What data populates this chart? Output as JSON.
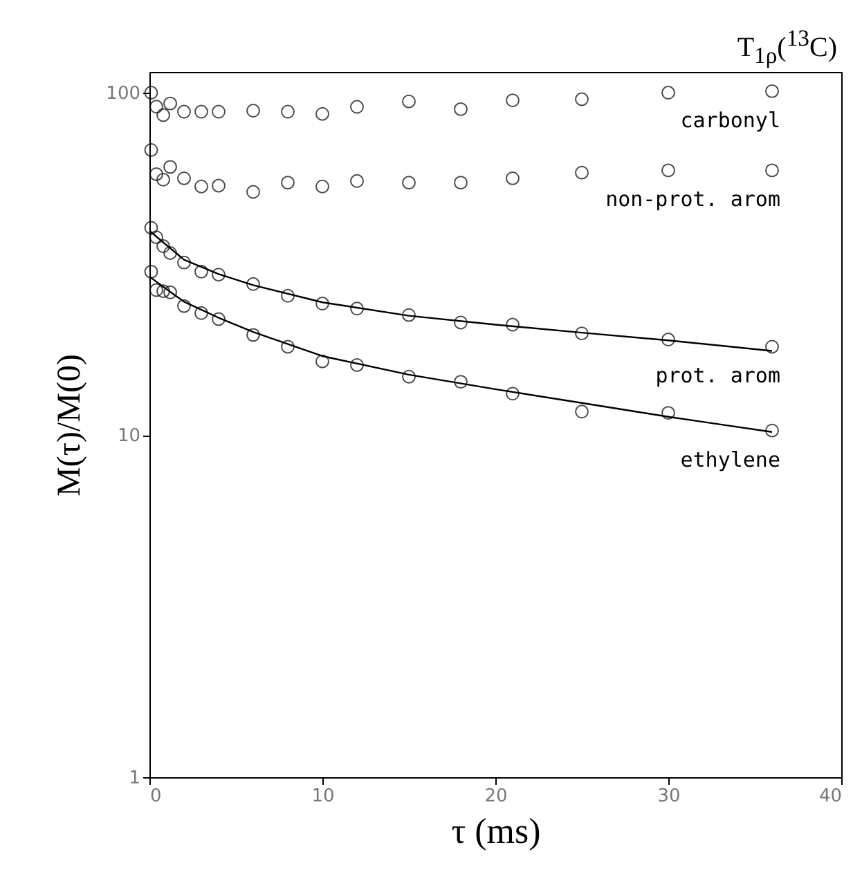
{
  "chart_data": {
    "type": "scatter",
    "title": "T$_{1ρ}$($^{13}$C)",
    "xlabel": "τ (ms)",
    "ylabel": "M(τ)/M(0)",
    "log": "y",
    "grid": false,
    "marker": "circle",
    "xlim": [
      0,
      40
    ],
    "xticks": [
      0,
      10,
      20,
      30,
      40
    ],
    "ylim": [
      1,
      115
    ],
    "yticks": [
      1,
      10,
      100
    ],
    "x": [
      0.1,
      0.4,
      0.8,
      1.2,
      2,
      3,
      4,
      6,
      8,
      10,
      12,
      15,
      18,
      21,
      25,
      30,
      36
    ],
    "series": [
      {
        "name": "carbonyl",
        "color": "#000000",
        "values": [
          100,
          91,
          86,
          93,
          88,
          88,
          88,
          88.6,
          88,
          86.7,
          90.9,
          94.3,
          89.5,
          95,
          95.7,
          100,
          101
        ]
      },
      {
        "name": "non-prot. arom",
        "color": "#000000",
        "values": [
          68,
          57.8,
          55.7,
          60.7,
          56.2,
          53.2,
          53.5,
          51.3,
          54.6,
          53.2,
          55.2,
          54.6,
          54.6,
          56.2,
          58.4,
          59.3,
          59.3
        ]
      },
      {
        "name": "prot. arom",
        "color": "#000000",
        "values": [
          40.3,
          37.8,
          35.6,
          34,
          31.9,
          30,
          29.4,
          27.6,
          25.5,
          24.2,
          23.4,
          22.4,
          21.3,
          21,
          19.8,
          19,
          18.1
        ]
      },
      {
        "name": "ethylene",
        "color": "#000000",
        "values": [
          30,
          26.5,
          26.3,
          26.1,
          23.8,
          22.7,
          21.8,
          19.6,
          18.1,
          16.4,
          16,
          14.8,
          14.3,
          13.2,
          11.7,
          11.6,
          10.3
        ]
      },
      {
        "type": "line",
        "color": "#000000",
        "line_style": "solid",
        "marker": "none",
        "x": [
          0,
          2,
          4,
          6,
          10,
          15,
          20,
          25,
          30,
          36
        ],
        "values": [
          39.5,
          32.5,
          29.5,
          27.4,
          24.4,
          22.3,
          21,
          19.9,
          18.9,
          17.6
        ]
      },
      {
        "type": "line",
        "color": "#000000",
        "line_style": "solid",
        "marker": "none",
        "x": [
          0,
          2,
          4,
          6,
          10,
          15,
          20,
          25,
          30,
          36
        ],
        "values": [
          29,
          24.5,
          22,
          20,
          17,
          15,
          13.6,
          12.4,
          11.3,
          10.2
        ]
      }
    ]
  }
}
